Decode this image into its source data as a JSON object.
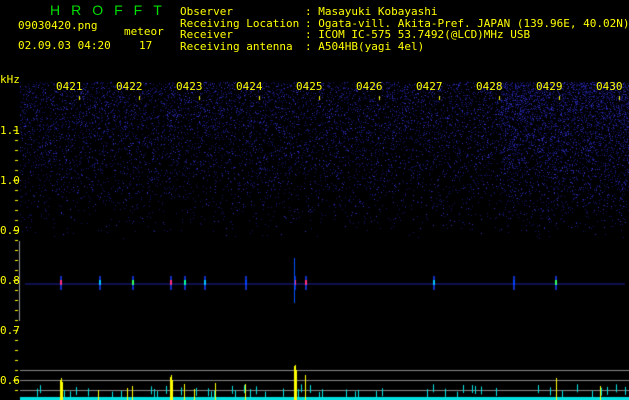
{
  "app_title": "HROFFT",
  "file_name": "09030420.png",
  "datetime": "02.09.03 04:20",
  "meteor_label": "meteor",
  "meteor_count": "17",
  "info": [
    {
      "key": "Observer",
      "value": ": Masayuki Kobayashi"
    },
    {
      "key": "Receiving Location",
      "value": ": Ogata-vill. Akita-Pref. JAPAN (139.96E, 40.02N)"
    },
    {
      "key": "Receiver",
      "value": ": ICOM IC-575 53.7492(@LCD)MHz USB"
    },
    {
      "key": "Receiving antenna",
      "value": ": A504HB(yagi 4el)"
    }
  ],
  "y_unit": "kHz",
  "y_ticks": [
    "1.1",
    "1.0",
    "0.9",
    "0.8",
    "0.7",
    "0.6"
  ],
  "time_labels": [
    "0421",
    "0422",
    "0423",
    "0424",
    "0425",
    "0426",
    "0427",
    "0428",
    "0429",
    "0430"
  ],
  "colors": {
    "text": "#ffff00",
    "title": "#00dd00",
    "noise": "#1a1a8a",
    "signal_bar": "#ffff00",
    "baseline_bar": "#00e0e0"
  }
}
